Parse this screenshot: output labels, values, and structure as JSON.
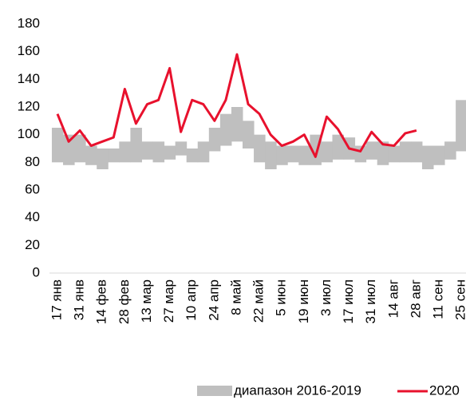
{
  "chart_data": {
    "type": "range_line",
    "categories": [
      "17 янв",
      null,
      "31 янв",
      null,
      "14 фев",
      null,
      "28 фев",
      null,
      "13 мар",
      null,
      "27 мар",
      null,
      "10 апр",
      null,
      "24 апр",
      null,
      "8 май",
      null,
      "22 май",
      null,
      "5 июн",
      null,
      "19 июн",
      null,
      "3 июл",
      null,
      "17 июл",
      null,
      "31 июл",
      null,
      "14 авг",
      null,
      "28 авг",
      null,
      "11 сен",
      null,
      "25 сен"
    ],
    "range": {
      "name": "диапазон 2016-2019",
      "color": "#bfbfbf",
      "low": [
        80,
        78,
        80,
        78,
        75,
        80,
        80,
        80,
        82,
        80,
        82,
        85,
        80,
        80,
        88,
        92,
        95,
        90,
        80,
        75,
        78,
        80,
        78,
        78,
        80,
        82,
        82,
        80,
        82,
        78,
        80,
        80,
        80,
        75,
        78,
        82,
        88
      ],
      "high": [
        105,
        100,
        100,
        92,
        90,
        90,
        95,
        105,
        95,
        95,
        92,
        95,
        90,
        95,
        105,
        115,
        120,
        110,
        100,
        95,
        92,
        92,
        92,
        100,
        95,
        100,
        98,
        92,
        95,
        95,
        92,
        95,
        95,
        92,
        92,
        95,
        125
      ]
    },
    "series": [
      {
        "name": "2020",
        "color": "#e8112d",
        "values": [
          115,
          95,
          103,
          92,
          95,
          98,
          133,
          108,
          122,
          125,
          148,
          102,
          125,
          122,
          110,
          125,
          158,
          122,
          115,
          100,
          92,
          95,
          100,
          84,
          113,
          104,
          90,
          88,
          102,
          93,
          92,
          101,
          103,
          null,
          null,
          null,
          null
        ]
      }
    ],
    "ylim": [
      0,
      180
    ],
    "yticks": [
      0,
      20,
      40,
      60,
      80,
      100,
      120,
      140,
      160,
      180
    ],
    "grid": false
  }
}
